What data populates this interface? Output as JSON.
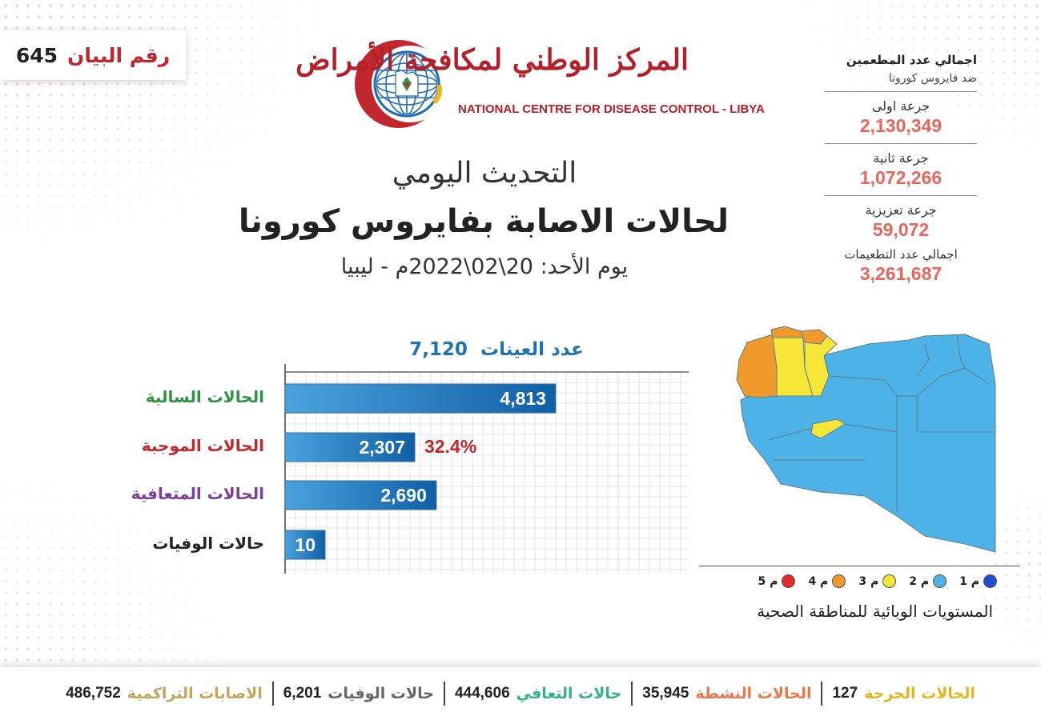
{
  "statement": {
    "label": "رقم البيان",
    "number": "645"
  },
  "logo": {
    "arabic_name": "المركز الوطني لمكافحة الأمراض",
    "english_name": "NATIONAL CENTRE FOR DISEASE CONTROL - LIBYA"
  },
  "titles": {
    "line1": "التحديث اليومي",
    "line2": "لحالات الاصابة بفايروس كورونا",
    "line3": "يوم الأحد: 20\\02\\2022م - ليبيا"
  },
  "vaccination": {
    "title": "اجمالي عدد المطعمين",
    "subtitle": "ضد فايروس كورونا",
    "doses": [
      {
        "label": "جرعة اولى",
        "value": "2,130,349"
      },
      {
        "label": "جرعة ثانية",
        "value": "1,072,266"
      },
      {
        "label": "جرعة تعزيزية",
        "value": "59,072"
      }
    ],
    "total_label": "اجمالي عدد التطعيمات",
    "total_value": "3,261,687"
  },
  "chart_data": {
    "type": "bar",
    "orientation": "horizontal",
    "title": "عدد العينات 7,120",
    "title_label": "عدد العينات",
    "title_value": "7,120",
    "categories": [
      "الحالات السالبة",
      "الحالات الموجبة",
      "الحالات المتعافية",
      "حالات الوفيات"
    ],
    "values": [
      4813,
      2307,
      2690,
      10
    ],
    "value_labels": [
      "4,813",
      "2,307",
      "2,690",
      "10"
    ],
    "category_colors": [
      "#2e9444",
      "#c0272d",
      "#7b3f98",
      "#222222"
    ],
    "bar_color": "#1e72b8",
    "annotations": [
      {
        "category": "الحالات الموجبة",
        "text": "32.4%"
      }
    ],
    "xlim": [
      0,
      7120
    ],
    "grid": true
  },
  "map": {
    "colors": {
      "level1": "#1f4fd1",
      "level2": "#4db3e6",
      "level3": "#f5e637",
      "level4": "#f09a2b",
      "level5": "#e5282b"
    },
    "legend": [
      {
        "label": "م 1",
        "color": "#1f4fd1"
      },
      {
        "label": "م 2",
        "color": "#4db3e6"
      },
      {
        "label": "م 3",
        "color": "#f5e637"
      },
      {
        "label": "م 4",
        "color": "#f09a2b"
      },
      {
        "label": "م 5",
        "color": "#e5282b"
      }
    ],
    "legend_title": "المستويات الوبائية للمناطقة الصحية"
  },
  "footer": [
    {
      "label": "الحالات الحرجة",
      "value": "127",
      "color": "#e7b41c"
    },
    {
      "label": "الحالات النشطة",
      "value": "35,945",
      "color": "#e9774a"
    },
    {
      "label": "حالات التعافي",
      "value": "444,606",
      "color": "#34b08a"
    },
    {
      "label": "حالات الوفيات",
      "value": "6,201",
      "color": "#666666"
    },
    {
      "label": "الاصابات التراكمية",
      "value": "486,752",
      "color": "#c4a45a"
    }
  ]
}
